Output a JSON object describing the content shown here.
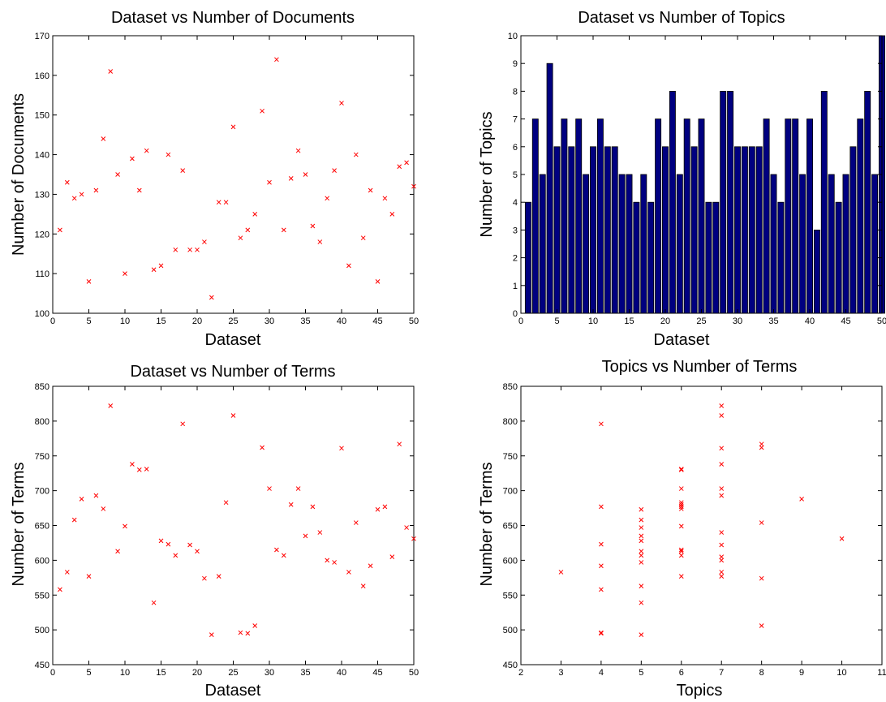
{
  "colors": {
    "marker": "#ff0000",
    "bar_fill": "#000080",
    "bar_edge": "#000000",
    "axes": "#000000",
    "background": "#ffffff"
  },
  "chart_data": [
    {
      "type": "scatter",
      "title": "Dataset vs Number of Documents",
      "xlabel": "Dataset",
      "ylabel": "Number of Documents",
      "xlim": [
        0,
        50
      ],
      "ylim": [
        100,
        170
      ],
      "xticks": [
        0,
        5,
        10,
        15,
        20,
        25,
        30,
        35,
        40,
        45,
        50
      ],
      "yticks": [
        100,
        110,
        120,
        130,
        140,
        150,
        160,
        170
      ],
      "marker": "x",
      "grid": false,
      "x": [
        1,
        2,
        3,
        4,
        5,
        6,
        7,
        8,
        9,
        10,
        11,
        12,
        13,
        14,
        15,
        16,
        17,
        18,
        19,
        20,
        21,
        22,
        23,
        24,
        25,
        26,
        27,
        28,
        29,
        30,
        31,
        32,
        33,
        34,
        35,
        36,
        37,
        38,
        39,
        40,
        41,
        42,
        43,
        44,
        45,
        46,
        47,
        48,
        49,
        50
      ],
      "y": [
        121,
        133,
        129,
        130,
        108,
        131,
        144,
        161,
        135,
        110,
        139,
        131,
        141,
        111,
        112,
        140,
        116,
        136,
        116,
        116,
        118,
        104,
        128,
        128,
        147,
        119,
        121,
        125,
        151,
        133,
        164,
        121,
        134,
        141,
        135,
        122,
        118,
        129,
        136,
        153,
        112,
        140,
        119,
        131,
        108,
        129,
        125,
        137,
        138,
        132
      ]
    },
    {
      "type": "bar",
      "title": "Dataset vs Number of Topics",
      "xlabel": "Dataset",
      "ylabel": "Number of Topics",
      "xlim": [
        0,
        50
      ],
      "ylim": [
        0,
        10
      ],
      "xticks": [
        0,
        5,
        10,
        15,
        20,
        25,
        30,
        35,
        40,
        45,
        50
      ],
      "yticks": [
        0,
        1,
        2,
        3,
        4,
        5,
        6,
        7,
        8,
        9,
        10
      ],
      "grid": false,
      "x": [
        1,
        2,
        3,
        4,
        5,
        6,
        7,
        8,
        9,
        10,
        11,
        12,
        13,
        14,
        15,
        16,
        17,
        18,
        19,
        20,
        21,
        22,
        23,
        24,
        25,
        26,
        27,
        28,
        29,
        30,
        31,
        32,
        33,
        34,
        35,
        36,
        37,
        38,
        39,
        40,
        41,
        42,
        43,
        44,
        45,
        46,
        47,
        48,
        49,
        50
      ],
      "values": [
        4,
        7,
        5,
        9,
        6,
        7,
        6,
        7,
        5,
        6,
        7,
        6,
        6,
        5,
        5,
        4,
        5,
        4,
        7,
        6,
        8,
        5,
        7,
        6,
        7,
        4,
        4,
        8,
        8,
        6,
        6,
        6,
        6,
        7,
        5,
        4,
        7,
        7,
        5,
        7,
        3,
        8,
        5,
        4,
        5,
        6,
        7,
        8,
        5,
        10
      ]
    },
    {
      "type": "scatter",
      "title": "Dataset vs Number of Terms",
      "xlabel": "Dataset",
      "ylabel": "Number of Terms",
      "xlim": [
        0,
        50
      ],
      "ylim": [
        450,
        850
      ],
      "xticks": [
        0,
        5,
        10,
        15,
        20,
        25,
        30,
        35,
        40,
        45,
        50
      ],
      "yticks": [
        450,
        500,
        550,
        600,
        650,
        700,
        750,
        800,
        850
      ],
      "marker": "x",
      "grid": false,
      "x": [
        1,
        2,
        3,
        4,
        5,
        6,
        7,
        8,
        9,
        10,
        11,
        12,
        13,
        14,
        15,
        16,
        17,
        18,
        19,
        20,
        21,
        22,
        23,
        24,
        25,
        26,
        27,
        28,
        29,
        30,
        31,
        32,
        33,
        34,
        35,
        36,
        37,
        38,
        39,
        40,
        41,
        42,
        43,
        44,
        45,
        46,
        47,
        48,
        49,
        50
      ],
      "y": [
        558,
        583,
        658,
        688,
        577,
        693,
        674,
        822,
        613,
        649,
        738,
        730,
        731,
        539,
        628,
        623,
        607,
        796,
        622,
        613,
        574,
        493,
        577,
        683,
        808,
        496,
        495,
        506,
        762,
        703,
        615,
        607,
        680,
        703,
        635,
        677,
        640,
        600,
        597,
        761,
        583,
        654,
        563,
        592,
        673,
        677,
        605,
        767,
        647,
        631
      ]
    },
    {
      "type": "scatter",
      "title": "Topics vs Number of Terms",
      "xlabel": "Topics",
      "ylabel": "Number of Terms",
      "xlim": [
        2,
        11
      ],
      "ylim": [
        450,
        850
      ],
      "xticks": [
        2,
        3,
        4,
        5,
        6,
        7,
        8,
        9,
        10,
        11
      ],
      "yticks": [
        450,
        500,
        550,
        600,
        650,
        700,
        750,
        800,
        850
      ],
      "marker": "x",
      "grid": false,
      "x": [
        4,
        7,
        5,
        9,
        6,
        7,
        6,
        7,
        5,
        6,
        7,
        6,
        6,
        5,
        5,
        4,
        5,
        4,
        7,
        6,
        8,
        5,
        7,
        6,
        7,
        4,
        4,
        8,
        8,
        6,
        6,
        6,
        6,
        7,
        5,
        4,
        7,
        7,
        5,
        7,
        3,
        8,
        5,
        4,
        5,
        6,
        7,
        8,
        5,
        10
      ],
      "y": [
        558,
        583,
        658,
        688,
        577,
        693,
        674,
        822,
        613,
        649,
        738,
        730,
        731,
        539,
        628,
        623,
        607,
        796,
        622,
        613,
        574,
        493,
        577,
        683,
        808,
        496,
        495,
        506,
        762,
        703,
        615,
        607,
        680,
        703,
        635,
        677,
        640,
        600,
        597,
        761,
        583,
        654,
        563,
        592,
        673,
        677,
        605,
        767,
        647,
        631
      ]
    }
  ]
}
